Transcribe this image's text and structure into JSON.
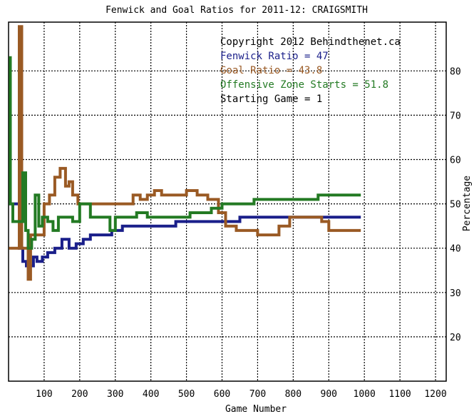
{
  "chart_data": {
    "type": "line",
    "title": "Fenwick and Goal Ratios for 2011-12: CRAIGSMITH",
    "xlabel": "Game Number",
    "ylabel": "Percentage",
    "xlim": [
      0,
      1230
    ],
    "ylim": [
      10,
      91
    ],
    "x_ticks": [
      100,
      200,
      300,
      400,
      500,
      600,
      700,
      800,
      900,
      1000,
      1100,
      1200
    ],
    "y_ticks": [
      20,
      30,
      40,
      50,
      60,
      70,
      80
    ],
    "grid": true,
    "legend_position": "top-right",
    "annotations": [
      {
        "text": "Copyright 2012 Behindthenet.ca",
        "color": "#000000"
      },
      {
        "text": "Fenwick Ratio = 47",
        "color": "#1a1f8a"
      },
      {
        "text": "Goal Ratio = 43.8",
        "color": "#9a5a24"
      },
      {
        "text": "Offensive Zone Starts = 51.8",
        "color": "#237a23"
      },
      {
        "text": "Starting Game = 1",
        "color": "#000000"
      }
    ],
    "series": [
      {
        "name": "Fenwick Ratio",
        "color": "#1a1f8a",
        "points": [
          [
            1,
            50
          ],
          [
            10,
            50
          ],
          [
            20,
            50
          ],
          [
            30,
            40
          ],
          [
            40,
            37
          ],
          [
            50,
            36
          ],
          [
            60,
            36
          ],
          [
            70,
            38
          ],
          [
            80,
            37
          ],
          [
            95,
            38
          ],
          [
            110,
            39
          ],
          [
            130,
            40
          ],
          [
            150,
            42
          ],
          [
            170,
            40
          ],
          [
            190,
            41
          ],
          [
            210,
            42
          ],
          [
            230,
            43
          ],
          [
            260,
            43
          ],
          [
            290,
            44
          ],
          [
            320,
            45
          ],
          [
            350,
            45
          ],
          [
            380,
            45
          ],
          [
            410,
            45
          ],
          [
            440,
            45
          ],
          [
            470,
            46
          ],
          [
            500,
            46
          ],
          [
            530,
            46
          ],
          [
            560,
            46
          ],
          [
            590,
            46
          ],
          [
            620,
            46
          ],
          [
            650,
            47
          ],
          [
            680,
            47
          ],
          [
            720,
            47
          ],
          [
            760,
            47
          ],
          [
            800,
            47
          ],
          [
            840,
            47
          ],
          [
            880,
            47
          ],
          [
            920,
            47
          ],
          [
            960,
            47
          ],
          [
            990,
            47
          ]
        ]
      },
      {
        "name": "Goal Ratio",
        "color": "#9a5a24",
        "points": [
          [
            1,
            40
          ],
          [
            15,
            40
          ],
          [
            30,
            90
          ],
          [
            37,
            40
          ],
          [
            45,
            40
          ],
          [
            55,
            33
          ],
          [
            62,
            43
          ],
          [
            80,
            43
          ],
          [
            100,
            50
          ],
          [
            115,
            52
          ],
          [
            130,
            56
          ],
          [
            145,
            58
          ],
          [
            160,
            54
          ],
          [
            170,
            55
          ],
          [
            180,
            52
          ],
          [
            195,
            50
          ],
          [
            210,
            50
          ],
          [
            230,
            50
          ],
          [
            260,
            50
          ],
          [
            300,
            50
          ],
          [
            330,
            50
          ],
          [
            350,
            52
          ],
          [
            370,
            51
          ],
          [
            390,
            52
          ],
          [
            410,
            53
          ],
          [
            430,
            52
          ],
          [
            450,
            52
          ],
          [
            480,
            52
          ],
          [
            500,
            53
          ],
          [
            530,
            52
          ],
          [
            560,
            51
          ],
          [
            590,
            48
          ],
          [
            610,
            45
          ],
          [
            640,
            44
          ],
          [
            670,
            44
          ],
          [
            700,
            43
          ],
          [
            730,
            43
          ],
          [
            760,
            45
          ],
          [
            790,
            47
          ],
          [
            820,
            47
          ],
          [
            850,
            47
          ],
          [
            880,
            46
          ],
          [
            900,
            44
          ],
          [
            930,
            44
          ],
          [
            960,
            44
          ],
          [
            990,
            44
          ]
        ]
      },
      {
        "name": "Offensive Zone Starts",
        "color": "#237a23",
        "points": [
          [
            1,
            83
          ],
          [
            5,
            50
          ],
          [
            12,
            46
          ],
          [
            20,
            46
          ],
          [
            30,
            46
          ],
          [
            40,
            57
          ],
          [
            48,
            44
          ],
          [
            55,
            40
          ],
          [
            65,
            42
          ],
          [
            75,
            52
          ],
          [
            85,
            45
          ],
          [
            95,
            47
          ],
          [
            110,
            46
          ],
          [
            125,
            44
          ],
          [
            140,
            47
          ],
          [
            160,
            47
          ],
          [
            180,
            46
          ],
          [
            200,
            50
          ],
          [
            230,
            47
          ],
          [
            260,
            47
          ],
          [
            285,
            44
          ],
          [
            300,
            47
          ],
          [
            330,
            47
          ],
          [
            360,
            48
          ],
          [
            390,
            47
          ],
          [
            420,
            47
          ],
          [
            450,
            47
          ],
          [
            480,
            47
          ],
          [
            510,
            48
          ],
          [
            540,
            48
          ],
          [
            570,
            49
          ],
          [
            600,
            50
          ],
          [
            630,
            50
          ],
          [
            660,
            50
          ],
          [
            690,
            51
          ],
          [
            720,
            51
          ],
          [
            750,
            51
          ],
          [
            780,
            51
          ],
          [
            810,
            51
          ],
          [
            840,
            51
          ],
          [
            870,
            52
          ],
          [
            900,
            52
          ],
          [
            930,
            52
          ],
          [
            960,
            52
          ],
          [
            990,
            52
          ]
        ]
      }
    ]
  }
}
